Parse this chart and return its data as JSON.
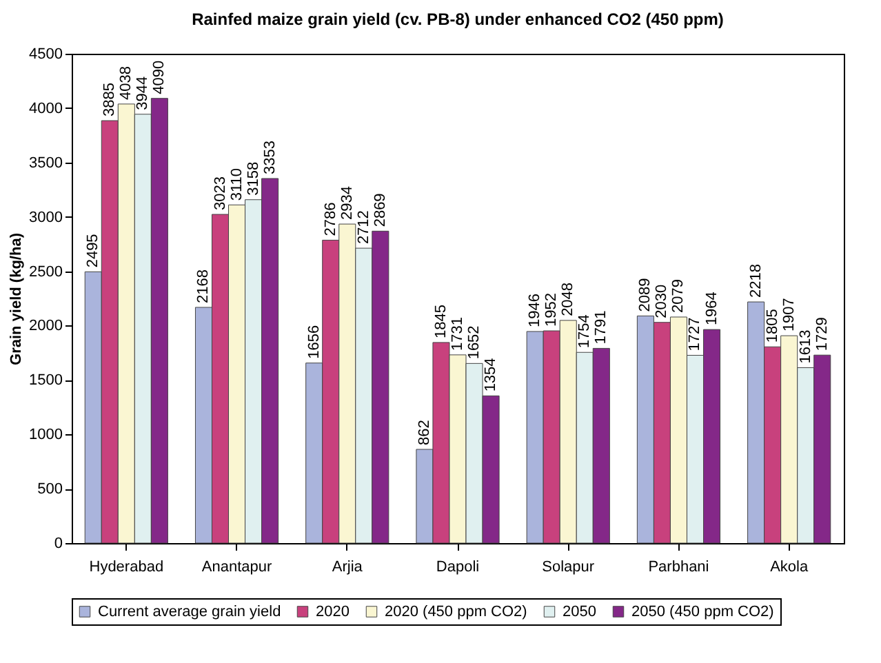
{
  "chart_data": {
    "type": "bar",
    "title": "Rainfed maize grain yield (cv. PB-8) under enhanced CO2 (450 ppm)",
    "ylabel": "Grain yield (kg/ha)",
    "categories": [
      "Hyderabad",
      "Anantapur",
      "Arjia",
      "Dapoli",
      "Solapur",
      "Parbhani",
      "Akola"
    ],
    "series": [
      {
        "name": "Current average grain yield",
        "color": "#aab4dc",
        "values": [
          2495,
          2168,
          1656,
          862,
          1946,
          2089,
          2218
        ]
      },
      {
        "name": "2020",
        "color": "#c8417d",
        "values": [
          3885,
          3023,
          2786,
          1845,
          1952,
          2030,
          1805
        ]
      },
      {
        "name": "2020 (450 ppm CO2)",
        "color": "#faf6d2",
        "values": [
          4038,
          3110,
          2934,
          1731,
          2048,
          2079,
          1907
        ]
      },
      {
        "name": "2050",
        "color": "#e0f0f0",
        "values": [
          3944,
          3158,
          2712,
          1652,
          1754,
          1727,
          1613
        ]
      },
      {
        "name": "2050 (450 ppm CO2)",
        "color": "#842888",
        "values": [
          4090,
          3353,
          2869,
          1354,
          1791,
          1964,
          1729
        ]
      }
    ],
    "ylim": [
      0,
      4500
    ],
    "yticks": [
      0,
      500,
      1000,
      1500,
      2000,
      2500,
      3000,
      3500,
      4000,
      4500
    ],
    "data_labels": true,
    "legend": "bottom",
    "grid": false
  }
}
